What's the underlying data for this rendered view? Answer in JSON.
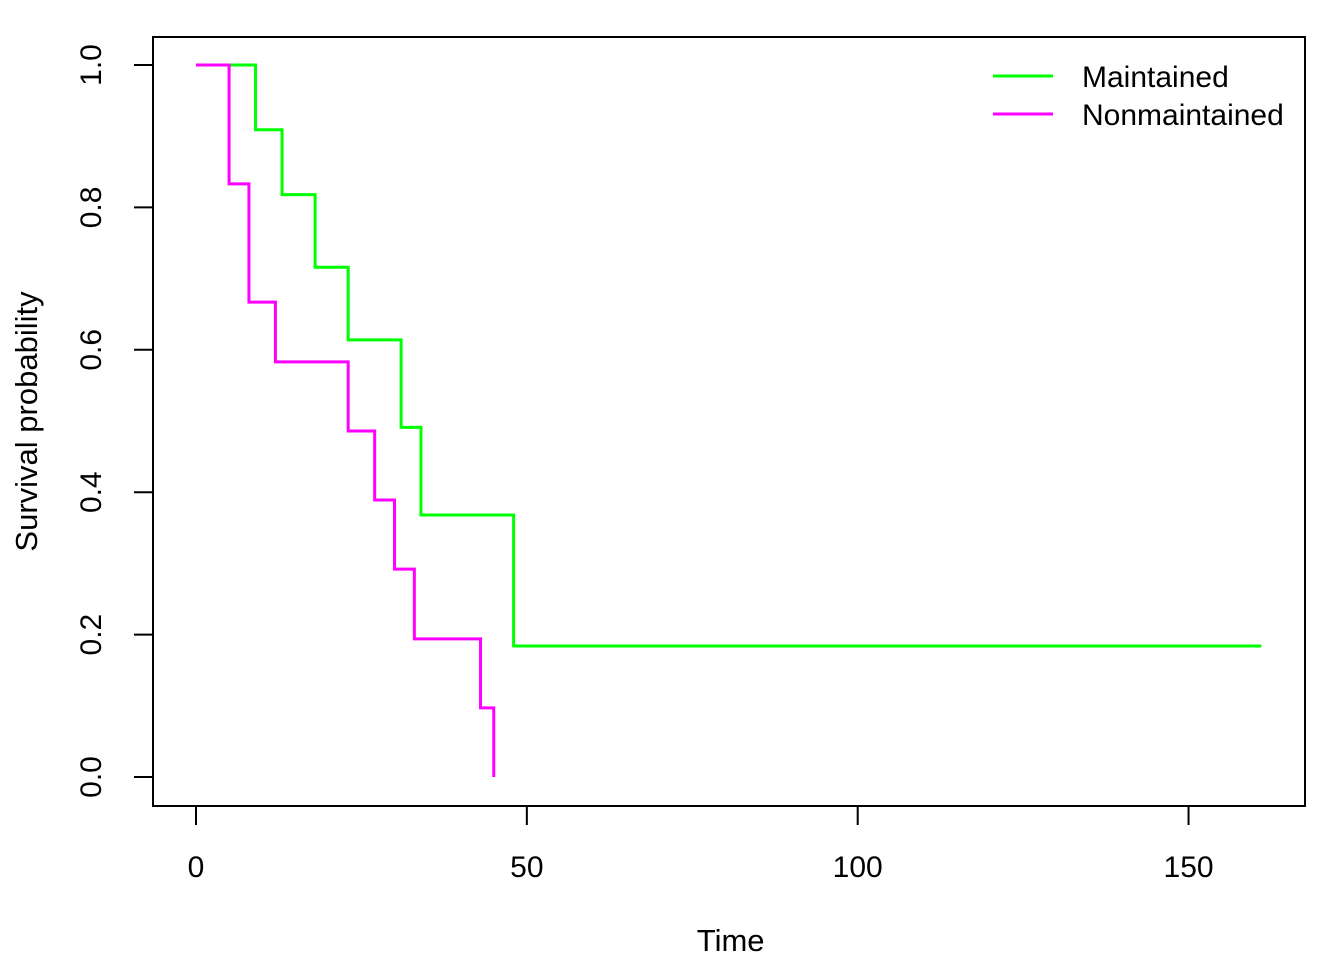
{
  "figure": {
    "background": "#FFFFFF",
    "axis_color": "#000000"
  },
  "chart_data": {
    "type": "line",
    "subtype": "step-survival-curve",
    "title": "",
    "xlabel": "Time",
    "ylabel": "Survival probability",
    "xlim": [
      0,
      161
    ],
    "ylim": [
      0.0,
      1.0
    ],
    "x_ticks": [
      0,
      50,
      100,
      150
    ],
    "x_tick_labels": [
      "0",
      "50",
      "100",
      "150"
    ],
    "y_ticks": [
      0.0,
      0.2,
      0.4,
      0.6,
      0.8,
      1.0
    ],
    "y_tick_labels": [
      "0.0",
      "0.2",
      "0.4",
      "0.6",
      "0.8",
      "1.0"
    ],
    "grid": false,
    "legend": {
      "position": "topright",
      "border": "none",
      "entries": [
        {
          "label": "Maintained",
          "color": "#00FF00"
        },
        {
          "label": "Nonmaintained",
          "color": "#FF00FF"
        }
      ]
    },
    "series": [
      {
        "name": "Maintained",
        "color": "#00FF00",
        "points": [
          [
            0,
            1.0
          ],
          [
            9,
            0.909
          ],
          [
            13,
            0.818
          ],
          [
            18,
            0.716
          ],
          [
            23,
            0.614
          ],
          [
            31,
            0.491
          ],
          [
            34,
            0.368
          ],
          [
            48,
            0.184
          ],
          [
            161,
            0.184
          ]
        ]
      },
      {
        "name": "Nonmaintained",
        "color": "#FF00FF",
        "points": [
          [
            0,
            1.0
          ],
          [
            5,
            0.833
          ],
          [
            8,
            0.667
          ],
          [
            12,
            0.583
          ],
          [
            23,
            0.486
          ],
          [
            27,
            0.389
          ],
          [
            30,
            0.292
          ],
          [
            33,
            0.194
          ],
          [
            43,
            0.097
          ],
          [
            45,
            0.0
          ]
        ]
      }
    ]
  }
}
